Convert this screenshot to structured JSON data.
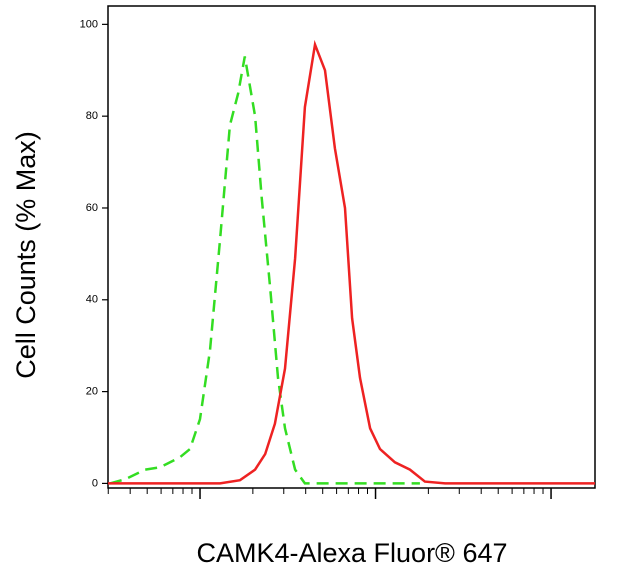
{
  "chart_data": {
    "type": "line",
    "xscale": "log",
    "ylabel": "Cell Counts (% Max)",
    "xlabel": "CAMK4-Alexa Fluor® 647",
    "xlim": [
      299,
      178000
    ],
    "xticks": [
      1000,
      10000,
      100000
    ],
    "ylim": [
      -1,
      104
    ],
    "yticks": [
      0,
      20,
      40,
      60,
      80,
      100
    ],
    "series": [
      {
        "color": "#33dd22",
        "dash": true,
        "x": [
          307,
          374,
          487,
          592,
          769,
          877,
          1000,
          1140,
          1300,
          1480,
          1650,
          1800,
          2060,
          2250,
          2510,
          2780,
          3050,
          3480,
          3960,
          5510,
          17900
        ],
        "values": [
          0,
          0.9,
          3,
          3.5,
          5.7,
          7.5,
          14,
          29,
          53,
          78,
          85,
          93,
          80,
          62,
          42.5,
          23,
          12,
          3,
          0,
          0,
          0
        ]
      },
      {
        "color": "#ee2222",
        "dash": false,
        "x": [
          299,
          1300,
          1690,
          2060,
          2350,
          2670,
          3050,
          3480,
          3960,
          4520,
          5150,
          5870,
          6700,
          7350,
          8160,
          9310,
          10600,
          12900,
          15700,
          19100,
          24900,
          178000
        ],
        "values": [
          0,
          0,
          0.7,
          3,
          6.4,
          13,
          25,
          49,
          82,
          95.6,
          90,
          73,
          60,
          36,
          23,
          12,
          7.5,
          4.6,
          3,
          0.4,
          0,
          0
        ]
      }
    ]
  }
}
